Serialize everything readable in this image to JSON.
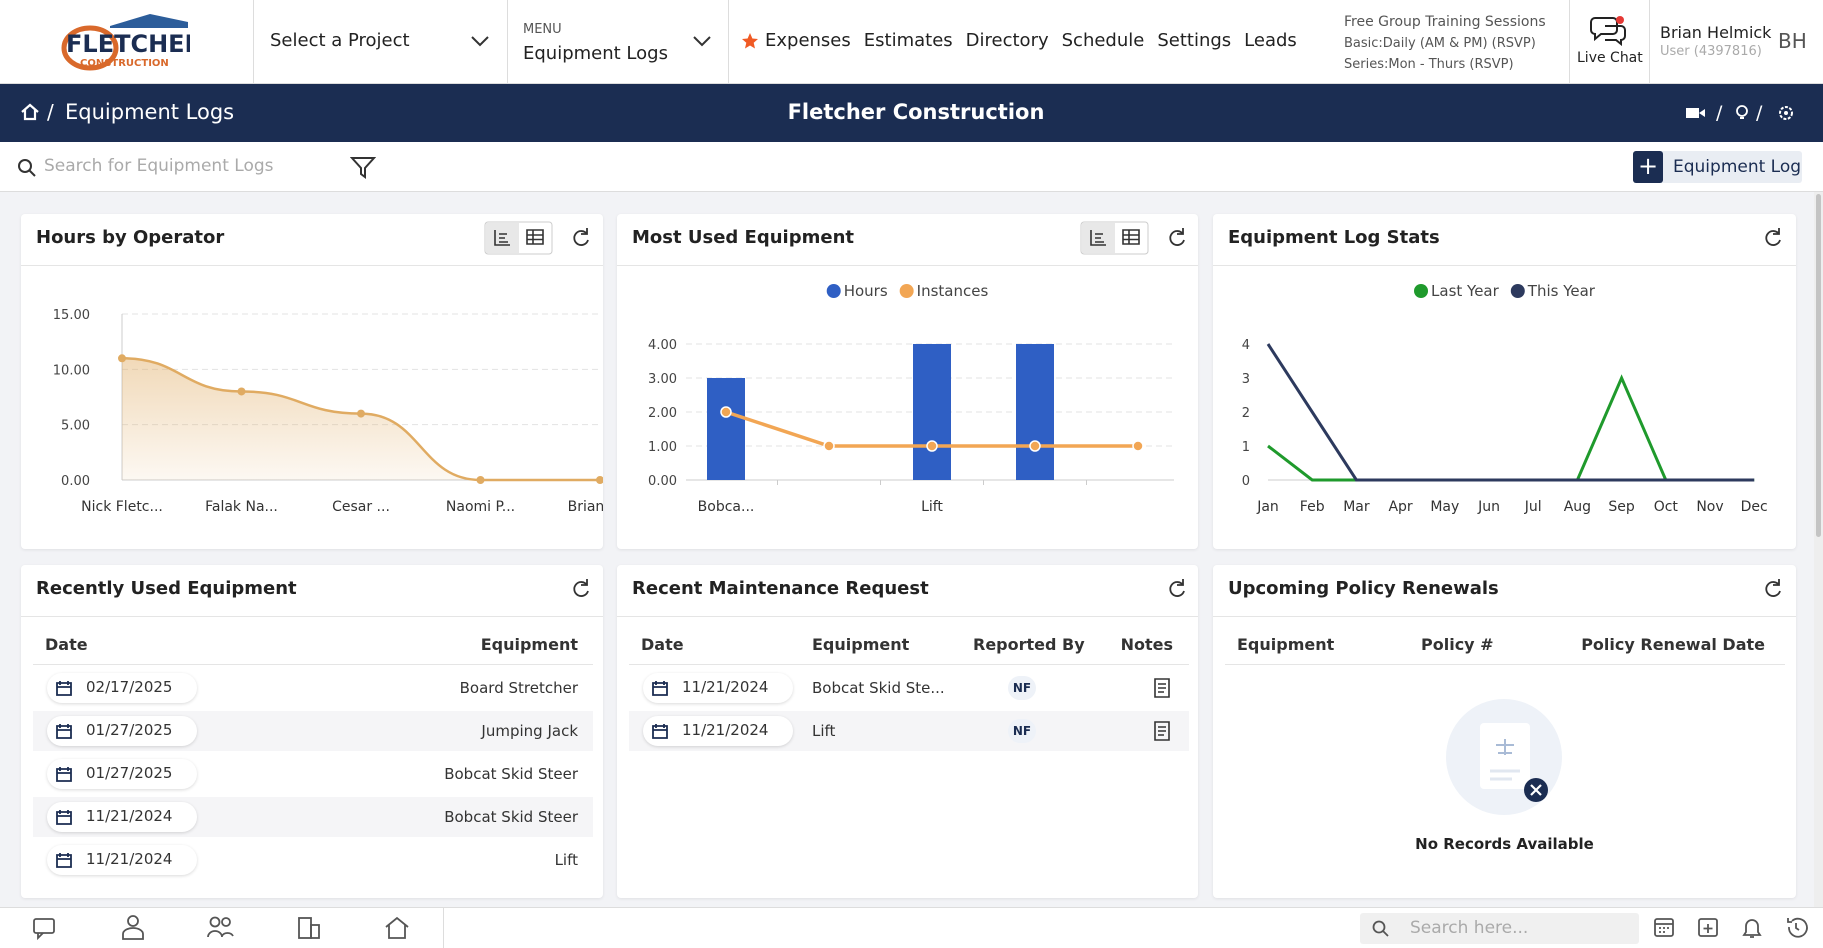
{
  "header": {
    "logo_text": "FLETCHER",
    "logo_sub": "CONSTRUCTION",
    "project_select": "Select a Project",
    "menu_label": "MENU",
    "menu_value": "Equipment Logs",
    "nav": [
      "Expenses",
      "Estimates",
      "Directory",
      "Schedule",
      "Settings",
      "Leads"
    ],
    "training": [
      "Free Group Training Sessions",
      "Basic:Daily (AM & PM) (RSVP)",
      "Series:Mon - Thurs (RSVP)"
    ],
    "live_chat": "Live Chat",
    "user_name": "Brian Helmick",
    "user_id": "User (4397816)",
    "initials": "BH"
  },
  "title_bar": {
    "breadcrumb": "Equipment Logs",
    "company": "Fletcher Construction"
  },
  "toolbar": {
    "search_placeholder": "Search for Equipment Logs",
    "add_button": "Equipment Log"
  },
  "hours_chart": {
    "type": "area",
    "title": "Hours by Operator",
    "categories": [
      "Nick Fletc...",
      "Falak Na...",
      "Cesar ...",
      "Naomi P...",
      "Brian H..."
    ],
    "values": [
      11,
      8,
      6,
      0,
      0
    ],
    "color": "#e0ab62",
    "ylim": [
      0,
      15
    ],
    "yticks": [
      {
        "value": 0,
        "label": "0.00"
      },
      {
        "value": 5,
        "label": "5.00"
      },
      {
        "value": 10,
        "label": "10.00"
      },
      {
        "value": 15,
        "label": "15.00"
      }
    ],
    "grid": true
  },
  "equipment_chart": {
    "type": "bar",
    "title": "Most Used Equipment",
    "categories": [
      "Bobca...",
      null,
      "Lift",
      null,
      null
    ],
    "series": [
      {
        "name": "Hours",
        "kind": "bar",
        "color": "#2f5fc4",
        "values": [
          3,
          0,
          4,
          4,
          0
        ]
      },
      {
        "name": "Instances",
        "kind": "line",
        "color": "#f2a654",
        "values": [
          2,
          1,
          1,
          1,
          1
        ]
      }
    ],
    "ylim": [
      0,
      4
    ],
    "yticks": [
      {
        "value": 0,
        "label": "0.00"
      },
      {
        "value": 1,
        "label": "1.00"
      },
      {
        "value": 2,
        "label": "2.00"
      },
      {
        "value": 3,
        "label": "3.00"
      },
      {
        "value": 4,
        "label": "4.00"
      }
    ],
    "grid": true
  },
  "stats_chart": {
    "type": "line",
    "title": "Equipment Log Stats",
    "categories": [
      "Jan",
      "Feb",
      "Mar",
      "Apr",
      "May",
      "Jun",
      "Jul",
      "Aug",
      "Sep",
      "Oct",
      "Nov",
      "Dec"
    ],
    "series": [
      {
        "name": "Last Year",
        "color": "#1f9a2c",
        "values": [
          1,
          0,
          0,
          0,
          0,
          0,
          0,
          0,
          3,
          0,
          0,
          0
        ]
      },
      {
        "name": "This Year",
        "color": "#2d3a5e",
        "values": [
          4,
          2,
          0,
          0,
          0,
          0,
          0,
          0,
          0,
          0,
          0,
          0
        ]
      }
    ],
    "ylim": [
      0,
      4
    ],
    "yticks": [
      0,
      1,
      2,
      3,
      4
    ],
    "grid": false
  },
  "recent_equipment": {
    "title": "Recently Used Equipment",
    "columns": [
      "Date",
      "Equipment"
    ],
    "rows": [
      [
        "02/17/2025",
        "Board Stretcher"
      ],
      [
        "01/27/2025",
        "Jumping Jack"
      ],
      [
        "01/27/2025",
        "Bobcat Skid Steer"
      ],
      [
        "11/21/2024",
        "Bobcat Skid Steer"
      ],
      [
        "11/21/2024",
        "Lift"
      ]
    ]
  },
  "maintenance": {
    "title": "Recent Maintenance Request",
    "columns": [
      "Date",
      "Equipment",
      "Reported By",
      "Notes"
    ],
    "rows": [
      [
        "11/21/2024",
        "Bobcat Skid Ste...",
        "NF"
      ],
      [
        "11/21/2024",
        "Lift",
        "NF"
      ]
    ]
  },
  "policy": {
    "title": "Upcoming Policy Renewals",
    "columns": [
      "Equipment",
      "Policy #",
      "Policy Renewal Date"
    ],
    "empty_text": "No Records Available"
  },
  "bottom_bar": {
    "search_placeholder": "Search here..."
  }
}
